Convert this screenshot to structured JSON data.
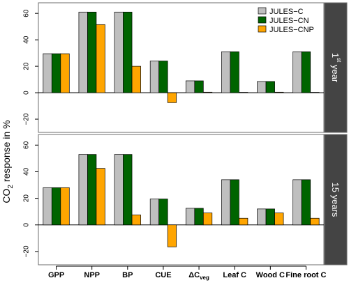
{
  "chart_data": {
    "type": "bar",
    "ylabel_main": "CO",
    "ylabel_sub": "2",
    "ylabel_rest": " response in %",
    "categories": [
      {
        "main": "GPP",
        "sub": ""
      },
      {
        "main": "NPP",
        "sub": ""
      },
      {
        "main": "BP",
        "sub": ""
      },
      {
        "main": "CUE",
        "sub": ""
      },
      {
        "main": "ΔC",
        "sub": "veg"
      },
      {
        "main": "Leaf C",
        "sub": ""
      },
      {
        "main": "Wood C",
        "sub": ""
      },
      {
        "main": "Fine root C",
        "sub": ""
      }
    ],
    "legend": {
      "placement": "top-right"
    },
    "series": [
      {
        "name": "JULES−C",
        "color": "#bfbfbf"
      },
      {
        "name": "JULES−CN",
        "color": "#006400"
      },
      {
        "name": "JULES−CNP",
        "color": "#ffa500"
      }
    ],
    "ylim": [
      -30,
      68
    ],
    "yticks": [
      -20,
      0,
      20,
      40,
      60
    ],
    "ytick_labels": [
      "−20",
      "0",
      "20",
      "40",
      "60"
    ],
    "panels": [
      {
        "strip_main": "1",
        "strip_sup": "st",
        "strip_rest": " year",
        "values": [
          [
            29.5,
            61,
            61,
            24,
            9,
            31,
            8.5,
            31
          ],
          [
            29.5,
            61,
            61,
            24,
            9,
            31,
            8.5,
            31
          ],
          [
            29.5,
            51.5,
            20,
            -7.5,
            0.4,
            0.3,
            0.4,
            0.3
          ]
        ]
      },
      {
        "strip_main": "15 years",
        "strip_sup": "",
        "strip_rest": "",
        "values": [
          [
            28,
            53,
            53,
            19.5,
            12.5,
            34,
            12,
            34
          ],
          [
            28,
            53,
            53,
            19.5,
            12.5,
            34,
            12,
            34
          ],
          [
            28,
            42.5,
            7.5,
            -16.5,
            9,
            5,
            9,
            5
          ]
        ]
      }
    ]
  }
}
